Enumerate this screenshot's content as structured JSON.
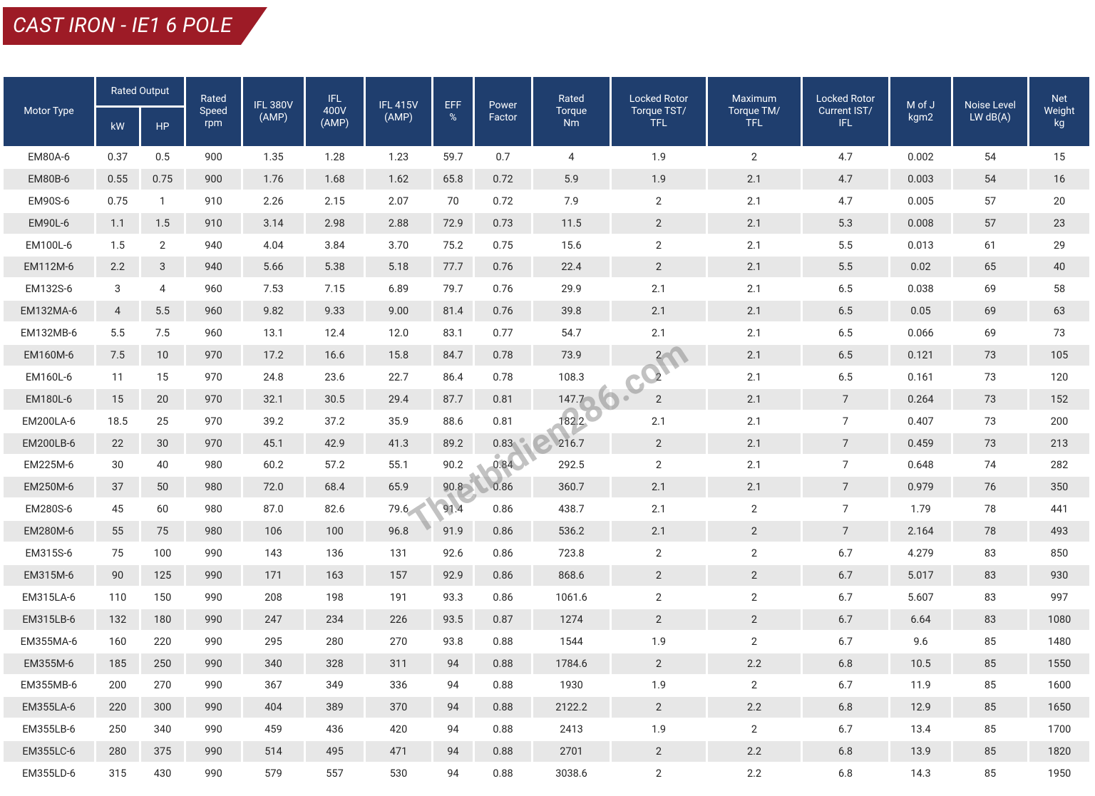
{
  "header": {
    "title": "CAST IRON - IE1 6 POLE"
  },
  "watermark": "Thietbidien286.com",
  "table": {
    "group": "Rated Output",
    "columns": [
      {
        "lines": [
          "Motor Type"
        ]
      },
      {
        "lines": [
          "kW"
        ]
      },
      {
        "lines": [
          "HP"
        ]
      },
      {
        "lines": [
          "Rated",
          "Speed",
          "rpm"
        ]
      },
      {
        "lines": [
          "IFL 380V",
          "(AMP)"
        ]
      },
      {
        "lines": [
          "IFL",
          "400V",
          "(AMP)"
        ]
      },
      {
        "lines": [
          "IFL 415V",
          "(AMP)"
        ]
      },
      {
        "lines": [
          "EFF",
          "%"
        ]
      },
      {
        "lines": [
          "Power",
          "Factor"
        ]
      },
      {
        "lines": [
          "Rated",
          "Torque",
          "Nm"
        ]
      },
      {
        "lines": [
          "Locked Rotor",
          "Torque TST/",
          "TFL"
        ]
      },
      {
        "lines": [
          "Maximum",
          "Torque TM/",
          "TFL"
        ]
      },
      {
        "lines": [
          "Locked Rotor",
          "Current IST/",
          "IFL"
        ]
      },
      {
        "lines": [
          "M of J",
          "kgm2"
        ]
      },
      {
        "lines": [
          "Noise Level",
          "LW dB(A)"
        ]
      },
      {
        "lines": [
          "Net",
          "Weight",
          "kg"
        ]
      }
    ],
    "rows": [
      [
        "EM80A-6",
        "0.37",
        "0.5",
        "900",
        "1.35",
        "1.28",
        "1.23",
        "59.7",
        "0.7",
        "4",
        "1.9",
        "2",
        "4.7",
        "0.002",
        "54",
        "15"
      ],
      [
        "EM80B-6",
        "0.55",
        "0.75",
        "900",
        "1.76",
        "1.68",
        "1.62",
        "65.8",
        "0.72",
        "5.9",
        "1.9",
        "2.1",
        "4.7",
        "0.003",
        "54",
        "16"
      ],
      [
        "EM90S-6",
        "0.75",
        "1",
        "910",
        "2.26",
        "2.15",
        "2.07",
        "70",
        "0.72",
        "7.9",
        "2",
        "2.1",
        "4.7",
        "0.005",
        "57",
        "20"
      ],
      [
        "EM90L-6",
        "1.1",
        "1.5",
        "910",
        "3.14",
        "2.98",
        "2.88",
        "72.9",
        "0.73",
        "11.5",
        "2",
        "2.1",
        "5.3",
        "0.008",
        "57",
        "23"
      ],
      [
        "EM100L-6",
        "1.5",
        "2",
        "940",
        "4.04",
        "3.84",
        "3.70",
        "75.2",
        "0.75",
        "15.6",
        "2",
        "2.1",
        "5.5",
        "0.013",
        "61",
        "29"
      ],
      [
        "EM112M-6",
        "2.2",
        "3",
        "940",
        "5.66",
        "5.38",
        "5.18",
        "77.7",
        "0.76",
        "22.4",
        "2",
        "2.1",
        "5.5",
        "0.02",
        "65",
        "40"
      ],
      [
        "EM132S-6",
        "3",
        "4",
        "960",
        "7.53",
        "7.15",
        "6.89",
        "79.7",
        "0.76",
        "29.9",
        "2.1",
        "2.1",
        "6.5",
        "0.038",
        "69",
        "58"
      ],
      [
        "EM132MA-6",
        "4",
        "5.5",
        "960",
        "9.82",
        "9.33",
        "9.00",
        "81.4",
        "0.76",
        "39.8",
        "2.1",
        "2.1",
        "6.5",
        "0.05",
        "69",
        "63"
      ],
      [
        "EM132MB-6",
        "5.5",
        "7.5",
        "960",
        "13.1",
        "12.4",
        "12.0",
        "83.1",
        "0.77",
        "54.7",
        "2.1",
        "2.1",
        "6.5",
        "0.066",
        "69",
        "73"
      ],
      [
        "EM160M-6",
        "7.5",
        "10",
        "970",
        "17.2",
        "16.6",
        "15.8",
        "84.7",
        "0.78",
        "73.9",
        "2",
        "2.1",
        "6.5",
        "0.121",
        "73",
        "105"
      ],
      [
        "EM160L-6",
        "11",
        "15",
        "970",
        "24.8",
        "23.6",
        "22.7",
        "86.4",
        "0.78",
        "108.3",
        "2",
        "2.1",
        "6.5",
        "0.161",
        "73",
        "120"
      ],
      [
        "EM180L-6",
        "15",
        "20",
        "970",
        "32.1",
        "30.5",
        "29.4",
        "87.7",
        "0.81",
        "147.7",
        "2",
        "2.1",
        "7",
        "0.264",
        "73",
        "152"
      ],
      [
        "EM200LA-6",
        "18.5",
        "25",
        "970",
        "39.2",
        "37.2",
        "35.9",
        "88.6",
        "0.81",
        "182.2",
        "2.1",
        "2.1",
        "7",
        "0.407",
        "73",
        "200"
      ],
      [
        "EM200LB-6",
        "22",
        "30",
        "970",
        "45.1",
        "42.9",
        "41.3",
        "89.2",
        "0.83",
        "216.7",
        "2",
        "2.1",
        "7",
        "0.459",
        "73",
        "213"
      ],
      [
        "EM225M-6",
        "30",
        "40",
        "980",
        "60.2",
        "57.2",
        "55.1",
        "90.2",
        "0.84",
        "292.5",
        "2",
        "2.1",
        "7",
        "0.648",
        "74",
        "282"
      ],
      [
        "EM250M-6",
        "37",
        "50",
        "980",
        "72.0",
        "68.4",
        "65.9",
        "90.8",
        "0.86",
        "360.7",
        "2.1",
        "2.1",
        "7",
        "0.979",
        "76",
        "350"
      ],
      [
        "EM280S-6",
        "45",
        "60",
        "980",
        "87.0",
        "82.6",
        "79.6",
        "91.4",
        "0.86",
        "438.7",
        "2.1",
        "2",
        "7",
        "1.79",
        "78",
        "441"
      ],
      [
        "EM280M-6",
        "55",
        "75",
        "980",
        "106",
        "100",
        "96.8",
        "91.9",
        "0.86",
        "536.2",
        "2.1",
        "2",
        "7",
        "2.164",
        "78",
        "493"
      ],
      [
        "EM315S-6",
        "75",
        "100",
        "990",
        "143",
        "136",
        "131",
        "92.6",
        "0.86",
        "723.8",
        "2",
        "2",
        "6.7",
        "4.279",
        "83",
        "850"
      ],
      [
        "EM315M-6",
        "90",
        "125",
        "990",
        "171",
        "163",
        "157",
        "92.9",
        "0.86",
        "868.6",
        "2",
        "2",
        "6.7",
        "5.017",
        "83",
        "930"
      ],
      [
        "EM315LA-6",
        "110",
        "150",
        "990",
        "208",
        "198",
        "191",
        "93.3",
        "0.86",
        "1061.6",
        "2",
        "2",
        "6.7",
        "5.607",
        "83",
        "997"
      ],
      [
        "EM315LB-6",
        "132",
        "180",
        "990",
        "247",
        "234",
        "226",
        "93.5",
        "0.87",
        "1274",
        "2",
        "2",
        "6.7",
        "6.64",
        "83",
        "1080"
      ],
      [
        "EM355MA-6",
        "160",
        "220",
        "990",
        "295",
        "280",
        "270",
        "93.8",
        "0.88",
        "1544",
        "1.9",
        "2",
        "6.7",
        "9.6",
        "85",
        "1480"
      ],
      [
        "EM355M-6",
        "185",
        "250",
        "990",
        "340",
        "328",
        "311",
        "94",
        "0.88",
        "1784.6",
        "2",
        "2.2",
        "6.8",
        "10.5",
        "85",
        "1550"
      ],
      [
        "EM355MB-6",
        "200",
        "270",
        "990",
        "367",
        "349",
        "336",
        "94",
        "0.88",
        "1930",
        "1.9",
        "2",
        "6.7",
        "11.9",
        "85",
        "1600"
      ],
      [
        "EM355LA-6",
        "220",
        "300",
        "990",
        "404",
        "389",
        "370",
        "94",
        "0.88",
        "2122.2",
        "2",
        "2.2",
        "6.8",
        "12.9",
        "85",
        "1650"
      ],
      [
        "EM355LB-6",
        "250",
        "340",
        "990",
        "459",
        "436",
        "420",
        "94",
        "0.88",
        "2413",
        "1.9",
        "2",
        "6.7",
        "13.4",
        "85",
        "1700"
      ],
      [
        "EM355LC-6",
        "280",
        "375",
        "990",
        "514",
        "495",
        "471",
        "94",
        "0.88",
        "2701",
        "2",
        "2.2",
        "6.8",
        "13.9",
        "85",
        "1820"
      ],
      [
        "EM355LD-6",
        "315",
        "430",
        "990",
        "579",
        "557",
        "530",
        "94",
        "0.88",
        "3038.6",
        "2",
        "2.2",
        "6.8",
        "14.3",
        "85",
        "1950"
      ]
    ]
  }
}
